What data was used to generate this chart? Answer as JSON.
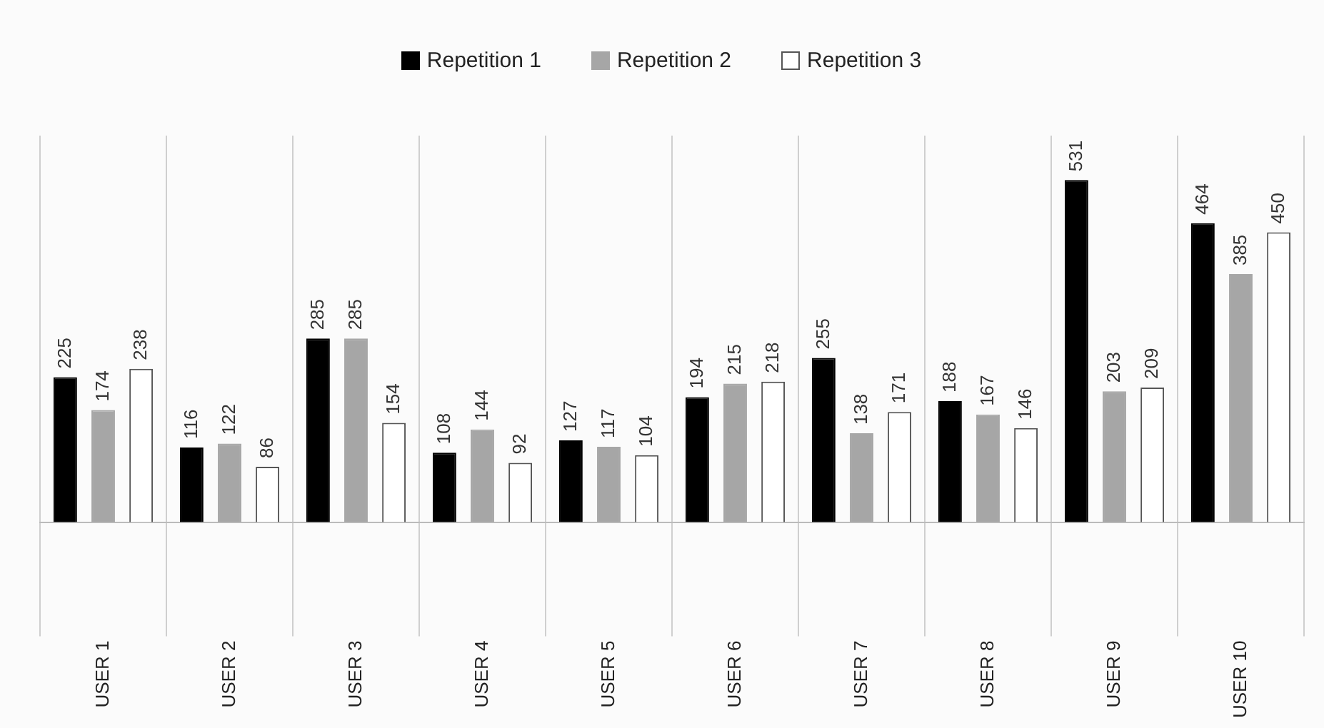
{
  "chart_data": {
    "type": "bar",
    "categories": [
      "USER 1",
      "USER 2",
      "USER 3",
      "USER 4",
      "USER 5",
      "USER 6",
      "USER 7",
      "USER 8",
      "USER 9",
      "USER 10"
    ],
    "series": [
      {
        "name": "Repetition 1",
        "color": "#000000",
        "values": [
          225,
          116,
          285,
          108,
          127,
          194,
          255,
          188,
          531,
          464
        ]
      },
      {
        "name": "Repetition 2",
        "color": "#a6a6a6",
        "values": [
          174,
          122,
          285,
          144,
          117,
          215,
          138,
          167,
          203,
          385
        ]
      },
      {
        "name": "Repetition 3",
        "color": "#ffffff",
        "values": [
          238,
          86,
          154,
          92,
          104,
          218,
          171,
          146,
          209,
          450
        ]
      }
    ],
    "ylim": [
      0,
      600
    ],
    "tick_labels": "x",
    "grid": "x",
    "legend": "top",
    "data_labels": true
  }
}
